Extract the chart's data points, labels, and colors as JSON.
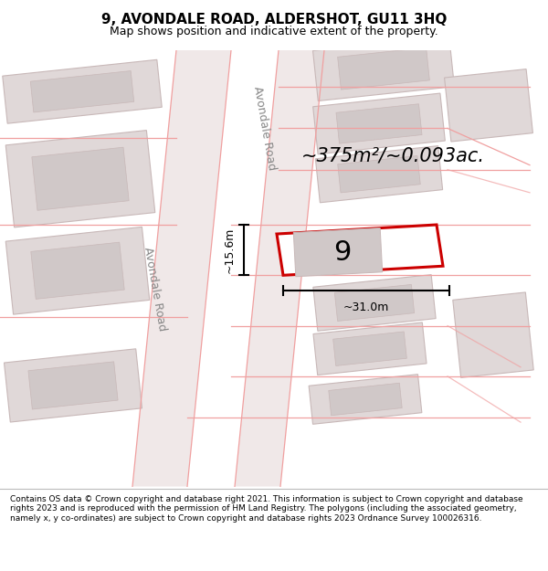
{
  "title": "9, AVONDALE ROAD, ALDERSHOT, GU11 3HQ",
  "subtitle": "Map shows position and indicative extent of the property.",
  "footer": "Contains OS data © Crown copyright and database right 2021. This information is subject to Crown copyright and database rights 2023 and is reproduced with the permission of HM Land Registry. The polygons (including the associated geometry, namely x, y co-ordinates) are subject to Crown copyright and database rights 2023 Ordnance Survey 100026316.",
  "area_label": "~375m²/~0.093ac.",
  "number_label": "9",
  "dim_width": "~31.0m",
  "dim_height": "~15.6m",
  "road_label_top": "Avondale Road",
  "road_label_bottom": "Avondale Road",
  "bg_color": "#ffffff",
  "map_bg": "#ffffff",
  "bld_fill": "#e0d8d8",
  "bld_edge": "#c8b8b8",
  "bld_inner_fill": "#d0c8c8",
  "road_fill": "#f0e8e8",
  "road_edge": "#e0c8c8",
  "pink_line": "#f0a0a0",
  "red_outline": "#cc0000",
  "dim_color": "#000000",
  "label_color": "#000000",
  "road_text_color": "#888888",
  "title_fontsize": 11,
  "subtitle_fontsize": 9,
  "footer_fontsize": 6.5,
  "area_fontsize": 15,
  "number_fontsize": 22,
  "dim_fontsize": 9,
  "road_fontsize": 9
}
